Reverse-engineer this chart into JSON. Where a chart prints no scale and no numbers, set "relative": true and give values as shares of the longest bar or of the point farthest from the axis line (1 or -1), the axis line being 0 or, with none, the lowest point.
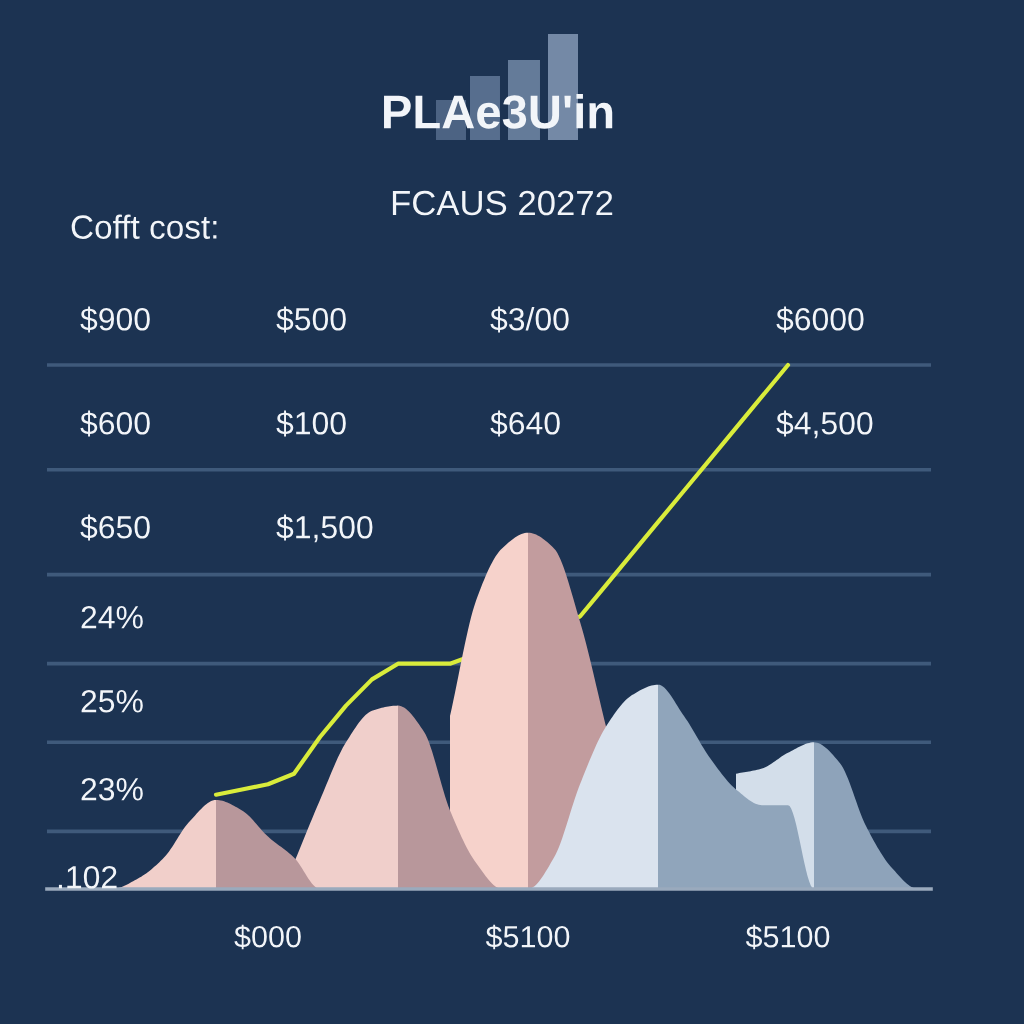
{
  "chart_data": {
    "type": "area",
    "title": "PLAe3U'in",
    "subtitle": "FCAUS 20272",
    "relative": true,
    "categories": [
      null,
      null,
      null,
      null,
      null,
      null,
      null,
      null,
      "$000",
      null,
      null,
      null,
      null,
      null,
      null,
      null,
      null,
      null,
      "$5100",
      null,
      null,
      null,
      null,
      null,
      null,
      null,
      null,
      null,
      "$5100",
      null,
      null,
      null,
      null,
      null
    ],
    "series": [
      {
        "color": "#f6d2cb",
        "values": [
          null,
          null,
          null,
          null,
          null,
          null,
          null,
          null,
          null,
          null,
          null,
          null,
          null,
          null,
          null,
          0.33,
          0.55,
          0.65,
          0.68,
          null,
          null,
          null,
          null,
          null,
          null,
          null,
          null,
          null,
          null,
          null,
          null,
          null,
          null,
          null
        ]
      },
      {
        "color": "#c29c9e",
        "values": [
          null,
          null,
          null,
          null,
          null,
          null,
          null,
          null,
          null,
          null,
          null,
          null,
          null,
          null,
          null,
          null,
          null,
          null,
          0.68,
          0.65,
          0.51,
          0.31,
          null,
          null,
          null,
          null,
          null,
          null,
          null,
          null,
          null,
          null,
          null,
          null
        ]
      },
      {
        "color": "#f0cfcb",
        "values": [
          null,
          null,
          null,
          null,
          null,
          null,
          null,
          null,
          null,
          0.05,
          0.17,
          0.28,
          0.34,
          0.35,
          null,
          null,
          null,
          null,
          null,
          null,
          null,
          null,
          null,
          null,
          null,
          null,
          null,
          null,
          null,
          null,
          null,
          null,
          null,
          null
        ]
      },
      {
        "color": "#b8979b",
        "values": [
          null,
          null,
          null,
          null,
          null,
          null,
          null,
          null,
          null,
          null,
          null,
          null,
          null,
          0.35,
          0.3,
          0.15,
          0.05,
          0,
          null,
          null,
          null,
          null,
          null,
          null,
          null,
          null,
          null,
          null,
          null,
          null,
          null,
          null,
          null,
          null
        ]
      },
      {
        "color": "#f1cfca",
        "values": [
          null,
          null,
          0,
          0.02,
          0.06,
          0.13,
          0.17,
          null,
          null,
          null,
          null,
          null,
          null,
          null,
          null,
          null,
          null,
          null,
          null,
          null,
          null,
          null,
          null,
          null,
          null,
          null,
          null,
          null,
          null,
          null,
          null,
          null,
          null,
          null
        ]
      },
      {
        "color": "#b8979b",
        "values": [
          null,
          null,
          null,
          null,
          null,
          null,
          0.17,
          0.15,
          0.1,
          0.06,
          0,
          null,
          null,
          null,
          null,
          null,
          null,
          null,
          null,
          null,
          null,
          null,
          null,
          null,
          null,
          null,
          null,
          null,
          null,
          null,
          null,
          null,
          null,
          null
        ]
      },
      {
        "color": "#d3deea",
        "values": [
          null,
          null,
          null,
          null,
          null,
          null,
          null,
          null,
          null,
          null,
          null,
          null,
          null,
          null,
          null,
          null,
          null,
          null,
          null,
          null,
          null,
          null,
          null,
          null,
          null,
          null,
          0.22,
          0.23,
          0.26,
          0.28,
          null,
          null,
          null,
          null
        ]
      },
      {
        "color": "#8ea3ba",
        "values": [
          null,
          null,
          null,
          null,
          null,
          null,
          null,
          null,
          null,
          null,
          null,
          null,
          null,
          null,
          null,
          null,
          null,
          null,
          null,
          null,
          null,
          null,
          null,
          null,
          null,
          null,
          null,
          null,
          null,
          0.28,
          0.24,
          0.12,
          0.04,
          0
        ]
      },
      {
        "color": "#dae3ee",
        "values": [
          null,
          null,
          null,
          null,
          null,
          null,
          null,
          null,
          null,
          null,
          null,
          null,
          null,
          null,
          null,
          null,
          null,
          null,
          0,
          0.06,
          0.2,
          0.31,
          0.37,
          0.39,
          null,
          null,
          null,
          null,
          null,
          null,
          null,
          null,
          null,
          null
        ]
      },
      {
        "color": "#90a5bb",
        "values": [
          null,
          null,
          null,
          null,
          null,
          null,
          null,
          null,
          null,
          null,
          null,
          null,
          null,
          null,
          null,
          null,
          null,
          null,
          null,
          null,
          null,
          null,
          null,
          0.39,
          0.33,
          0.25,
          0.19,
          0.16,
          0.16,
          0,
          null,
          null,
          null,
          null
        ]
      },
      {
        "type": "line",
        "color": "#d9ec3b",
        "values": [
          null,
          null,
          null,
          null,
          null,
          null,
          0.18,
          0.19,
          0.2,
          0.22,
          0.29,
          0.35,
          0.4,
          0.43,
          0.43,
          0.43,
          null,
          null,
          null,
          null,
          0.52,
          0.58,
          0.64,
          0.7,
          0.76,
          0.82,
          0.88,
          0.94,
          1,
          null,
          null,
          null,
          null,
          null
        ]
      }
    ],
    "ref_lines": [
      {
        "axis": "y",
        "value": 1,
        "color": "#3f5a7b"
      },
      {
        "axis": "y",
        "value": 0.8,
        "color": "#3f5a7b"
      },
      {
        "axis": "y",
        "value": 0.6,
        "color": "#3f5a7b"
      },
      {
        "axis": "y",
        "value": 0.43,
        "color": "#3f5a7b"
      },
      {
        "axis": "y",
        "value": 0.28,
        "color": "#3f5a7b"
      },
      {
        "axis": "y",
        "value": 0.11,
        "color": "#3f5a7b"
      }
    ],
    "annotations": [
      "Cofft cost:",
      "$900",
      "$500",
      "$3/00",
      "$6000",
      "$600",
      "$100",
      "$640",
      "$4,500",
      "$650",
      "$1,500",
      "24%",
      "25%",
      "23%",
      ".102"
    ]
  }
}
